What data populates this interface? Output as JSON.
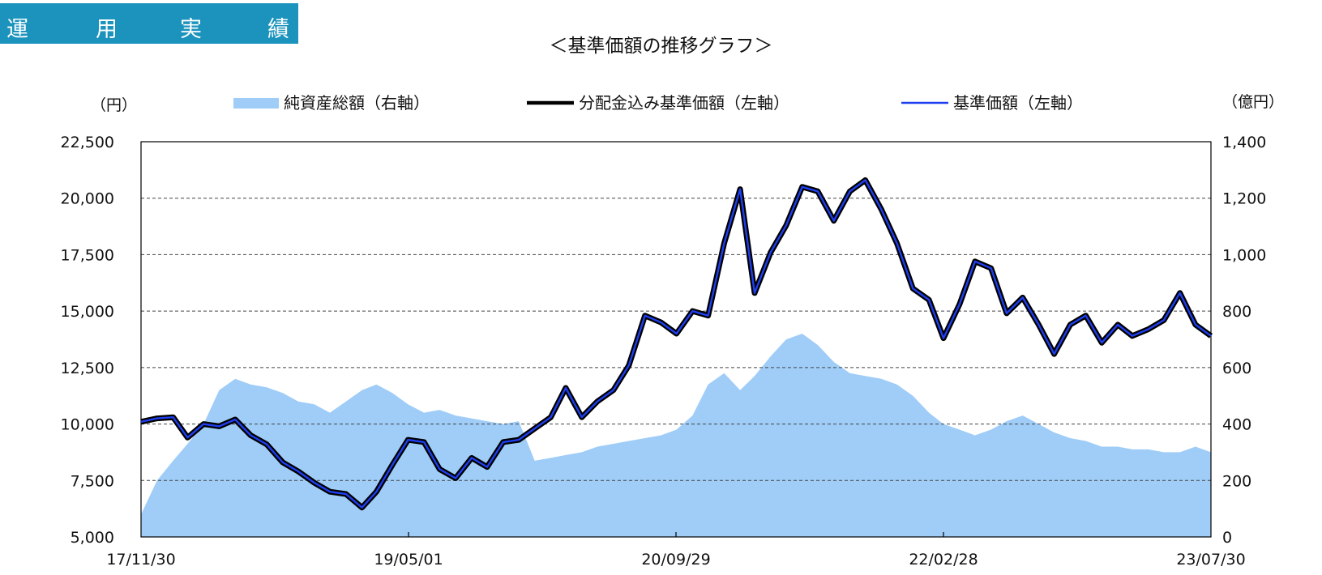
{
  "section_tab": {
    "chars": [
      "運",
      "用",
      "実",
      "績"
    ]
  },
  "chart_data": {
    "type": "line",
    "title": "＜基準価額の推移グラフ＞",
    "y_left_unit": "（円）",
    "y_right_unit": "（億円）",
    "x_ticks": [
      "17/11/30",
      "19/05/01",
      "20/09/29",
      "22/02/28",
      "23/07/30"
    ],
    "y_left_ticks": [
      "5,000",
      "7,500",
      "10,000",
      "12,500",
      "15,000",
      "17,500",
      "20,000",
      "22,500"
    ],
    "y_right_ticks": [
      "0",
      "200",
      "400",
      "600",
      "800",
      "1,000",
      "1,200",
      "1,400"
    ],
    "y_left_range": [
      5000,
      22500
    ],
    "y_right_range": [
      0,
      1400
    ],
    "legend_placement": "top",
    "grid": "horizontal dashed",
    "series": [
      {
        "name": "純資産総額（右軸）",
        "axis": "right",
        "style": "area",
        "color": "#9fcdf8",
        "x": [
          "2017-11-30",
          "2017-12-31",
          "2018-01-31",
          "2018-02-28",
          "2018-03-31",
          "2018-04-30",
          "2018-05-31",
          "2018-06-30",
          "2018-07-31",
          "2018-08-31",
          "2018-09-30",
          "2018-10-31",
          "2018-11-30",
          "2018-12-31",
          "2019-01-31",
          "2019-02-28",
          "2019-03-31",
          "2019-04-30",
          "2019-05-31",
          "2019-06-30",
          "2019-07-31",
          "2019-08-31",
          "2019-09-30",
          "2019-10-31",
          "2019-11-30",
          "2019-12-31",
          "2020-01-31",
          "2020-02-29",
          "2020-03-31",
          "2020-04-30",
          "2020-05-31",
          "2020-06-30",
          "2020-07-31",
          "2020-08-31",
          "2020-09-30",
          "2020-10-31",
          "2020-11-30",
          "2020-12-31",
          "2021-01-31",
          "2021-02-28",
          "2021-03-31",
          "2021-04-30",
          "2021-05-31",
          "2021-06-30",
          "2021-07-31",
          "2021-08-31",
          "2021-09-30",
          "2021-10-31",
          "2021-11-30",
          "2021-12-31",
          "2022-01-31",
          "2022-02-28",
          "2022-03-31",
          "2022-04-30",
          "2022-05-31",
          "2022-06-30",
          "2022-07-31",
          "2022-08-31",
          "2022-09-30",
          "2022-10-31",
          "2022-11-30",
          "2022-12-31",
          "2023-01-31",
          "2023-02-28",
          "2023-03-31",
          "2023-04-30",
          "2023-05-31",
          "2023-06-30",
          "2023-07-30"
        ],
        "values": [
          80,
          200,
          270,
          330,
          400,
          520,
          560,
          540,
          530,
          510,
          480,
          470,
          440,
          480,
          520,
          540,
          510,
          470,
          440,
          450,
          430,
          420,
          410,
          400,
          410,
          270,
          280,
          290,
          300,
          320,
          330,
          340,
          350,
          360,
          380,
          430,
          540,
          580,
          520,
          570,
          640,
          700,
          720,
          680,
          620,
          580,
          570,
          560,
          540,
          500,
          440,
          400,
          380,
          360,
          380,
          410,
          430,
          400,
          370,
          350,
          340,
          320,
          320,
          310,
          310,
          300,
          300,
          320,
          300
        ]
      },
      {
        "name": "分配金込み基準価額（左軸）",
        "axis": "left",
        "style": "line",
        "color": "#000000",
        "x": [
          "2017-11-30",
          "2017-12-31",
          "2018-01-31",
          "2018-02-28",
          "2018-03-31",
          "2018-04-30",
          "2018-05-31",
          "2018-06-30",
          "2018-07-31",
          "2018-08-31",
          "2018-09-30",
          "2018-10-31",
          "2018-11-30",
          "2018-12-31",
          "2019-01-31",
          "2019-02-28",
          "2019-03-31",
          "2019-04-30",
          "2019-05-31",
          "2019-06-30",
          "2019-07-31",
          "2019-08-31",
          "2019-09-30",
          "2019-10-31",
          "2019-11-30",
          "2019-12-31",
          "2020-01-31",
          "2020-02-29",
          "2020-03-31",
          "2020-04-30",
          "2020-05-31",
          "2020-06-30",
          "2020-07-31",
          "2020-08-31",
          "2020-09-30",
          "2020-10-31",
          "2020-11-30",
          "2020-12-31",
          "2021-01-31",
          "2021-02-28",
          "2021-03-31",
          "2021-04-30",
          "2021-05-31",
          "2021-06-30",
          "2021-07-31",
          "2021-08-31",
          "2021-09-30",
          "2021-10-31",
          "2021-11-30",
          "2021-12-31",
          "2022-01-31",
          "2022-02-28",
          "2022-03-31",
          "2022-04-30",
          "2022-05-31",
          "2022-06-30",
          "2022-07-31",
          "2022-08-31",
          "2022-09-30",
          "2022-10-31",
          "2022-11-30",
          "2022-12-31",
          "2023-01-31",
          "2023-02-28",
          "2023-03-31",
          "2023-04-30",
          "2023-05-31",
          "2023-06-30",
          "2023-07-30"
        ],
        "values": [
          10100,
          10250,
          10300,
          9400,
          10000,
          9900,
          10200,
          9500,
          9100,
          8300,
          7900,
          7400,
          7000,
          6900,
          6300,
          7000,
          8200,
          9300,
          9200,
          8000,
          7600,
          8500,
          8100,
          9200,
          9300,
          9800,
          10300,
          11600,
          10300,
          11000,
          11500,
          12600,
          14800,
          14500,
          14000,
          15000,
          14800,
          18000,
          20400,
          15800,
          17600,
          18800,
          20500,
          20300,
          19000,
          20300,
          20800,
          19500,
          18000,
          16000,
          15500,
          13800,
          15300,
          17200,
          16900,
          14900,
          15600,
          14400,
          13100,
          14400,
          14800,
          13600,
          14400,
          13900,
          14200,
          14600,
          15800,
          14400,
          13900
        ]
      },
      {
        "name": "基準価額（左軸）",
        "axis": "left",
        "style": "line",
        "color": "#1f3ff0",
        "x": [
          "2017-11-30",
          "2017-12-31",
          "2018-01-31",
          "2018-02-28",
          "2018-03-31",
          "2018-04-30",
          "2018-05-31",
          "2018-06-30",
          "2018-07-31",
          "2018-08-31",
          "2018-09-30",
          "2018-10-31",
          "2018-11-30",
          "2018-12-31",
          "2019-01-31",
          "2019-02-28",
          "2019-03-31",
          "2019-04-30",
          "2019-05-31",
          "2019-06-30",
          "2019-07-31",
          "2019-08-31",
          "2019-09-30",
          "2019-10-31",
          "2019-11-30",
          "2019-12-31",
          "2020-01-31",
          "2020-02-29",
          "2020-03-31",
          "2020-04-30",
          "2020-05-31",
          "2020-06-30",
          "2020-07-31",
          "2020-08-31",
          "2020-09-30",
          "2020-10-31",
          "2020-11-30",
          "2020-12-31",
          "2021-01-31",
          "2021-02-28",
          "2021-03-31",
          "2021-04-30",
          "2021-05-31",
          "2021-06-30",
          "2021-07-31",
          "2021-08-31",
          "2021-09-30",
          "2021-10-31",
          "2021-11-30",
          "2021-12-31",
          "2022-01-31",
          "2022-02-28",
          "2022-03-31",
          "2022-04-30",
          "2022-05-31",
          "2022-06-30",
          "2022-07-31",
          "2022-08-31",
          "2022-09-30",
          "2022-10-31",
          "2022-11-30",
          "2022-12-31",
          "2023-01-31",
          "2023-02-28",
          "2023-03-31",
          "2023-04-30",
          "2023-05-31",
          "2023-06-30",
          "2023-07-30"
        ],
        "values": [
          10100,
          10250,
          10300,
          9400,
          10000,
          9900,
          10200,
          9500,
          9100,
          8300,
          7900,
          7400,
          7000,
          6900,
          6300,
          7000,
          8200,
          9300,
          9200,
          8000,
          7600,
          8500,
          8100,
          9200,
          9300,
          9800,
          10300,
          11600,
          10300,
          11000,
          11500,
          12600,
          14800,
          14500,
          14000,
          15000,
          14800,
          18000,
          20400,
          15800,
          17600,
          18800,
          20500,
          20300,
          19000,
          20300,
          20800,
          19500,
          18000,
          16000,
          15500,
          13800,
          15300,
          17200,
          16900,
          14900,
          15600,
          14400,
          13100,
          14400,
          14800,
          13600,
          14400,
          13900,
          14200,
          14600,
          15800,
          14400,
          13900
        ]
      }
    ]
  }
}
